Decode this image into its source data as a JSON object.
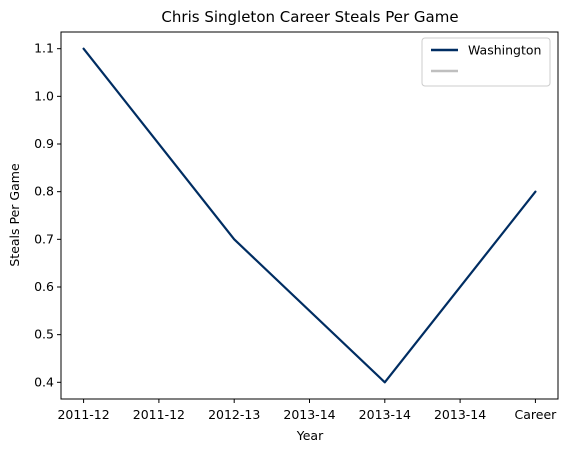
{
  "chart_data": {
    "type": "line",
    "title": "Chris Singleton  Career Steals Per Game",
    "xlabel": "Year",
    "ylabel": "Steals Per Game",
    "categories": [
      "2011-12",
      "2011-12",
      "2012-13",
      "2013-14",
      "2013-14",
      "2013-14",
      "Career"
    ],
    "ylim": [
      0.365,
      1.135
    ],
    "yticks": [
      0.4,
      0.5,
      0.6,
      0.7,
      0.8,
      0.9,
      1.0,
      1.1
    ],
    "ytick_labels": [
      "0.4",
      "0.5",
      "0.6",
      "0.7",
      "0.8",
      "0.9",
      "1.0",
      "1.1"
    ],
    "grid": false,
    "legend_position": "top-right",
    "series": [
      {
        "name": "Washington",
        "color": "#002D62",
        "points": [
          {
            "x": 0,
            "y": 1.1
          },
          {
            "x": 2,
            "y": 0.7
          },
          {
            "x": 4,
            "y": 0.4
          },
          {
            "x": 6,
            "y": 0.8
          }
        ]
      }
    ],
    "legend": [
      {
        "label": "Washington",
        "color": "#002D62"
      },
      {
        "label": "",
        "color": "#BFBFBF"
      }
    ]
  }
}
